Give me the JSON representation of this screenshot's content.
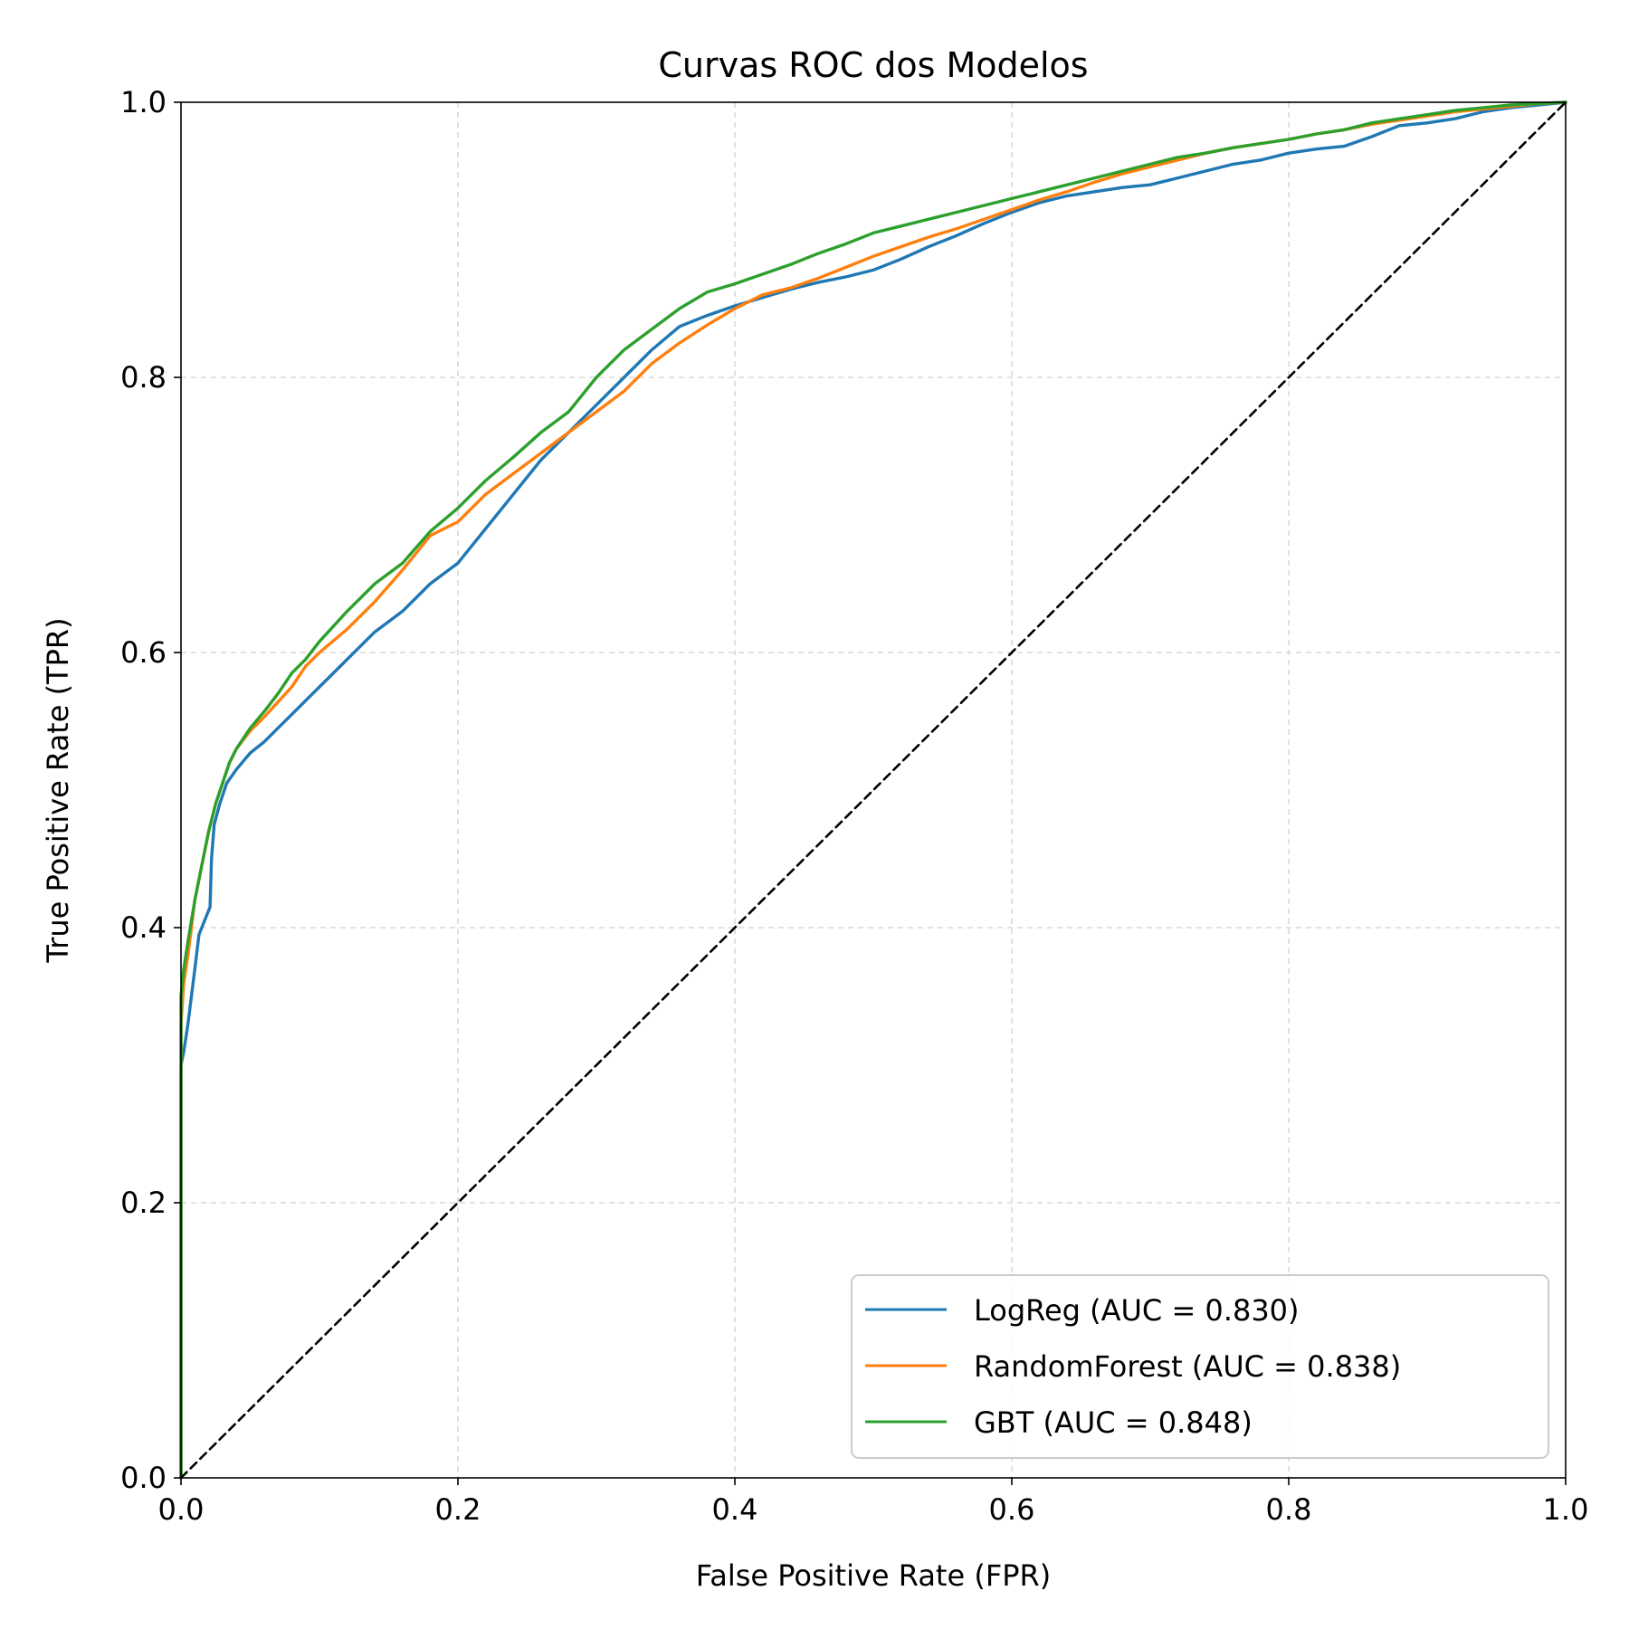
{
  "chart_data": {
    "type": "line",
    "title": "Curvas ROC dos Modelos",
    "xlabel": "False Positive Rate (FPR)",
    "ylabel": "True Positive Rate (TPR)",
    "xlim": [
      0.0,
      1.0
    ],
    "ylim": [
      0.0,
      1.0
    ],
    "xticks": [
      "0.0",
      "0.2",
      "0.4",
      "0.6",
      "0.8",
      "1.0"
    ],
    "yticks": [
      "0.0",
      "0.2",
      "0.4",
      "0.6",
      "0.8",
      "1.0"
    ],
    "grid": true,
    "legend_position": "lower-right",
    "series": [
      {
        "name": "LogReg (AUC = 0.830)",
        "color": "#1f77b4",
        "x": [
          0.0,
          0.0,
          0.002,
          0.005,
          0.01,
          0.013,
          0.017,
          0.021,
          0.022,
          0.024,
          0.028,
          0.033,
          0.04,
          0.05,
          0.06,
          0.07,
          0.08,
          0.09,
          0.1,
          0.12,
          0.14,
          0.16,
          0.18,
          0.2,
          0.22,
          0.24,
          0.26,
          0.28,
          0.3,
          0.32,
          0.34,
          0.36,
          0.38,
          0.4,
          0.42,
          0.44,
          0.46,
          0.48,
          0.5,
          0.52,
          0.54,
          0.56,
          0.58,
          0.6,
          0.62,
          0.64,
          0.66,
          0.68,
          0.7,
          0.72,
          0.74,
          0.76,
          0.78,
          0.8,
          0.82,
          0.84,
          0.86,
          0.88,
          0.9,
          0.92,
          0.94,
          0.96,
          0.98,
          1.0
        ],
        "y": [
          0.0,
          0.3,
          0.31,
          0.33,
          0.37,
          0.395,
          0.405,
          0.415,
          0.45,
          0.475,
          0.49,
          0.505,
          0.515,
          0.527,
          0.535,
          0.545,
          0.555,
          0.565,
          0.575,
          0.595,
          0.615,
          0.63,
          0.65,
          0.665,
          0.69,
          0.715,
          0.74,
          0.76,
          0.78,
          0.8,
          0.82,
          0.837,
          0.845,
          0.852,
          0.858,
          0.864,
          0.869,
          0.873,
          0.878,
          0.886,
          0.895,
          0.903,
          0.912,
          0.92,
          0.927,
          0.932,
          0.935,
          0.938,
          0.94,
          0.945,
          0.95,
          0.955,
          0.958,
          0.963,
          0.966,
          0.968,
          0.975,
          0.983,
          0.985,
          0.988,
          0.993,
          0.996,
          0.998,
          1.0
        ]
      },
      {
        "name": "RandomForest (AUC = 0.838)",
        "color": "#ff7f0e",
        "x": [
          0.0,
          0.0,
          0.002,
          0.005,
          0.01,
          0.015,
          0.02,
          0.025,
          0.03,
          0.035,
          0.04,
          0.05,
          0.06,
          0.07,
          0.08,
          0.09,
          0.1,
          0.12,
          0.14,
          0.16,
          0.18,
          0.2,
          0.22,
          0.24,
          0.26,
          0.28,
          0.3,
          0.32,
          0.34,
          0.36,
          0.38,
          0.4,
          0.42,
          0.44,
          0.46,
          0.48,
          0.5,
          0.52,
          0.54,
          0.56,
          0.58,
          0.6,
          0.62,
          0.64,
          0.66,
          0.68,
          0.7,
          0.72,
          0.74,
          0.76,
          0.78,
          0.8,
          0.82,
          0.84,
          0.86,
          0.88,
          0.9,
          0.92,
          0.94,
          0.96,
          0.98,
          1.0
        ],
        "y": [
          0.0,
          0.33,
          0.36,
          0.38,
          0.42,
          0.445,
          0.47,
          0.49,
          0.505,
          0.52,
          0.53,
          0.543,
          0.553,
          0.564,
          0.575,
          0.59,
          0.6,
          0.617,
          0.637,
          0.66,
          0.685,
          0.695,
          0.715,
          0.73,
          0.745,
          0.76,
          0.775,
          0.79,
          0.81,
          0.825,
          0.838,
          0.85,
          0.86,
          0.865,
          0.872,
          0.88,
          0.888,
          0.895,
          0.902,
          0.908,
          0.915,
          0.922,
          0.929,
          0.935,
          0.942,
          0.948,
          0.953,
          0.958,
          0.963,
          0.967,
          0.97,
          0.973,
          0.977,
          0.98,
          0.984,
          0.987,
          0.99,
          0.993,
          0.995,
          0.997,
          0.999,
          1.0
        ]
      },
      {
        "name": "GBT (AUC = 0.848)",
        "color": "#2ca02c",
        "x": [
          0.0,
          0.0,
          0.002,
          0.005,
          0.01,
          0.015,
          0.02,
          0.025,
          0.03,
          0.035,
          0.04,
          0.05,
          0.06,
          0.07,
          0.08,
          0.09,
          0.1,
          0.12,
          0.14,
          0.16,
          0.18,
          0.2,
          0.22,
          0.24,
          0.26,
          0.28,
          0.3,
          0.32,
          0.34,
          0.36,
          0.38,
          0.4,
          0.42,
          0.44,
          0.46,
          0.48,
          0.5,
          0.52,
          0.54,
          0.56,
          0.58,
          0.6,
          0.62,
          0.64,
          0.66,
          0.68,
          0.7,
          0.72,
          0.74,
          0.76,
          0.78,
          0.8,
          0.82,
          0.84,
          0.86,
          0.88,
          0.9,
          0.92,
          0.94,
          0.96,
          0.98,
          1.0
        ],
        "y": [
          0.0,
          0.35,
          0.37,
          0.39,
          0.42,
          0.445,
          0.47,
          0.49,
          0.505,
          0.52,
          0.53,
          0.545,
          0.557,
          0.57,
          0.585,
          0.595,
          0.608,
          0.63,
          0.65,
          0.665,
          0.688,
          0.705,
          0.725,
          0.742,
          0.76,
          0.775,
          0.8,
          0.82,
          0.835,
          0.85,
          0.862,
          0.868,
          0.875,
          0.882,
          0.89,
          0.897,
          0.905,
          0.91,
          0.915,
          0.92,
          0.925,
          0.93,
          0.935,
          0.94,
          0.945,
          0.95,
          0.955,
          0.96,
          0.963,
          0.967,
          0.97,
          0.973,
          0.977,
          0.98,
          0.985,
          0.988,
          0.991,
          0.994,
          0.996,
          0.998,
          0.999,
          1.0
        ]
      },
      {
        "name": "",
        "color": "#000000",
        "style": "dashed",
        "x": [
          0.0,
          1.0
        ],
        "y": [
          0.0,
          1.0
        ]
      }
    ]
  }
}
